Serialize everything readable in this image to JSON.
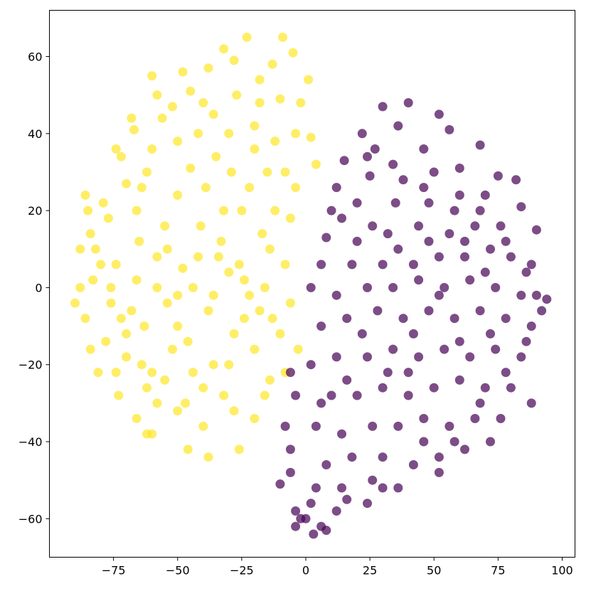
{
  "chart_data": {
    "type": "scatter",
    "title": "",
    "xlabel": "",
    "ylabel": "",
    "xlim": [
      -100,
      105
    ],
    "ylim": [
      -70,
      72
    ],
    "grid": false,
    "legend": "none",
    "xticks": [
      -75,
      -50,
      -25,
      0,
      25,
      50,
      75,
      100
    ],
    "yticks": [
      -60,
      -40,
      -20,
      0,
      20,
      40,
      60
    ],
    "xtick_labels": [
      "−75",
      "−50",
      "−25",
      "0",
      "25",
      "50",
      "75",
      "100"
    ],
    "ytick_labels": [
      "−60",
      "−40",
      "−20",
      "0",
      "20",
      "40",
      "60"
    ],
    "series": [
      {
        "color": "#fde725",
        "opacity": 0.7,
        "points": [
          [
            -23,
            65
          ],
          [
            -9,
            65
          ],
          [
            -60,
            55
          ],
          [
            -45,
            51
          ],
          [
            -13,
            58
          ],
          [
            -5,
            61
          ],
          [
            -38,
            57
          ],
          [
            -28,
            59
          ],
          [
            -52,
            47
          ],
          [
            -67,
            41
          ],
          [
            -72,
            34
          ],
          [
            -79,
            22
          ],
          [
            -85,
            20
          ],
          [
            -56,
            44
          ],
          [
            -42,
            40
          ],
          [
            -35,
            34
          ],
          [
            -20,
            42
          ],
          [
            -10,
            49
          ],
          [
            -2,
            48
          ],
          [
            2,
            39
          ],
          [
            4,
            32
          ],
          [
            -4,
            26
          ],
          [
            -15,
            30
          ],
          [
            -29,
            30
          ],
          [
            -39,
            26
          ],
          [
            -50,
            24
          ],
          [
            -62,
            30
          ],
          [
            -70,
            27
          ],
          [
            -77,
            18
          ],
          [
            -88,
            10
          ],
          [
            -83,
            2
          ],
          [
            -74,
            6
          ],
          [
            -65,
            12
          ],
          [
            -58,
            8
          ],
          [
            -48,
            5
          ],
          [
            -41,
            16
          ],
          [
            -33,
            12
          ],
          [
            -25,
            20
          ],
          [
            -17,
            14
          ],
          [
            -8,
            6
          ],
          [
            -6,
            -4
          ],
          [
            -13,
            -8
          ],
          [
            -22,
            -2
          ],
          [
            -30,
            4
          ],
          [
            -38,
            -6
          ],
          [
            -46,
            -14
          ],
          [
            -54,
            -4
          ],
          [
            -63,
            -10
          ],
          [
            -70,
            -18
          ],
          [
            -78,
            -14
          ],
          [
            -86,
            -8
          ],
          [
            -90,
            -4
          ],
          [
            -81,
            -22
          ],
          [
            -73,
            -28
          ],
          [
            -66,
            -34
          ],
          [
            -60,
            -38
          ],
          [
            -55,
            -24
          ],
          [
            -47,
            -30
          ],
          [
            -40,
            -36
          ],
          [
            -32,
            -28
          ],
          [
            -26,
            -42
          ],
          [
            -20,
            -34
          ],
          [
            -14,
            -24
          ],
          [
            -10,
            -12
          ],
          [
            -3,
            -16
          ],
          [
            -18,
            -6
          ],
          [
            -28,
            -12
          ],
          [
            -36,
            -20
          ],
          [
            -44,
            -22
          ],
          [
            -52,
            -16
          ],
          [
            -60,
            -22
          ],
          [
            -68,
            -6
          ],
          [
            -76,
            0
          ],
          [
            -84,
            14
          ],
          [
            -74,
            36
          ],
          [
            -66,
            20
          ],
          [
            -55,
            16
          ],
          [
            -45,
            31
          ],
          [
            -36,
            45
          ],
          [
            -27,
            50
          ],
          [
            -18,
            54
          ],
          [
            -12,
            38
          ],
          [
            -22,
            26
          ],
          [
            -32,
            20
          ],
          [
            -42,
            8
          ],
          [
            -50,
            -2
          ],
          [
            -58,
            0
          ],
          [
            -66,
            2
          ],
          [
            -76,
            -4
          ],
          [
            -70,
            -12
          ],
          [
            -62,
            -26
          ],
          [
            -50,
            -10
          ],
          [
            -36,
            -2
          ],
          [
            -26,
            6
          ],
          [
            -16,
            0
          ],
          [
            -24,
            -8
          ],
          [
            -30,
            -20
          ],
          [
            -40,
            -26
          ],
          [
            -46,
            -42
          ],
          [
            -58,
            -30
          ],
          [
            -64,
            -20
          ],
          [
            -72,
            -8
          ],
          [
            -80,
            6
          ],
          [
            -86,
            24
          ],
          [
            -60,
            36
          ],
          [
            -50,
            38
          ],
          [
            -40,
            48
          ],
          [
            -30,
            40
          ],
          [
            -20,
            36
          ],
          [
            -8,
            30
          ],
          [
            -6,
            18
          ],
          [
            -14,
            10
          ],
          [
            -24,
            2
          ],
          [
            -34,
            8
          ],
          [
            -44,
            0
          ],
          [
            -54,
            10
          ],
          [
            -64,
            26
          ],
          [
            -68,
            44
          ],
          [
            -58,
            50
          ],
          [
            -48,
            56
          ],
          [
            -32,
            62
          ],
          [
            -18,
            48
          ],
          [
            -4,
            40
          ],
          [
            1,
            54
          ],
          [
            -12,
            20
          ],
          [
            -20,
            -16
          ],
          [
            -8,
            -22
          ],
          [
            -16,
            -28
          ],
          [
            -28,
            -32
          ],
          [
            -38,
            -44
          ],
          [
            -50,
            -32
          ],
          [
            -62,
            -38
          ],
          [
            -74,
            -22
          ],
          [
            -84,
            -16
          ],
          [
            -88,
            0
          ],
          [
            -82,
            10
          ]
        ]
      },
      {
        "color": "#440154",
        "opacity": 0.7,
        "points": [
          [
            40,
            48
          ],
          [
            30,
            47
          ],
          [
            52,
            45
          ],
          [
            56,
            41
          ],
          [
            36,
            42
          ],
          [
            22,
            40
          ],
          [
            46,
            36
          ],
          [
            27,
            36
          ],
          [
            15,
            33
          ],
          [
            68,
            37
          ],
          [
            60,
            31
          ],
          [
            50,
            30
          ],
          [
            38,
            28
          ],
          [
            25,
            29
          ],
          [
            12,
            26
          ],
          [
            75,
            29
          ],
          [
            82,
            28
          ],
          [
            70,
            24
          ],
          [
            60,
            24
          ],
          [
            48,
            22
          ],
          [
            35,
            22
          ],
          [
            20,
            22
          ],
          [
            10,
            20
          ],
          [
            84,
            21
          ],
          [
            76,
            16
          ],
          [
            66,
            16
          ],
          [
            56,
            14
          ],
          [
            44,
            16
          ],
          [
            32,
            14
          ],
          [
            20,
            12
          ],
          [
            8,
            13
          ],
          [
            90,
            15
          ],
          [
            88,
            6
          ],
          [
            80,
            8
          ],
          [
            72,
            10
          ],
          [
            62,
            8
          ],
          [
            52,
            8
          ],
          [
            42,
            6
          ],
          [
            30,
            6
          ],
          [
            18,
            6
          ],
          [
            6,
            6
          ],
          [
            90,
            -2
          ],
          [
            94,
            -3
          ],
          [
            84,
            -2
          ],
          [
            74,
            0
          ],
          [
            64,
            2
          ],
          [
            54,
            0
          ],
          [
            44,
            2
          ],
          [
            34,
            0
          ],
          [
            24,
            0
          ],
          [
            12,
            -2
          ],
          [
            2,
            0
          ],
          [
            88,
            -10
          ],
          [
            78,
            -8
          ],
          [
            68,
            -6
          ],
          [
            58,
            -8
          ],
          [
            48,
            -6
          ],
          [
            38,
            -8
          ],
          [
            28,
            -6
          ],
          [
            16,
            -8
          ],
          [
            6,
            -10
          ],
          [
            84,
            -18
          ],
          [
            74,
            -16
          ],
          [
            64,
            -18
          ],
          [
            54,
            -16
          ],
          [
            44,
            -18
          ],
          [
            34,
            -16
          ],
          [
            24,
            -18
          ],
          [
            12,
            -18
          ],
          [
            2,
            -20
          ],
          [
            -6,
            -22
          ],
          [
            80,
            -26
          ],
          [
            70,
            -26
          ],
          [
            60,
            -24
          ],
          [
            50,
            -26
          ],
          [
            40,
            -28
          ],
          [
            30,
            -26
          ],
          [
            20,
            -28
          ],
          [
            10,
            -28
          ],
          [
            -4,
            -28
          ],
          [
            88,
            -30
          ],
          [
            76,
            -34
          ],
          [
            66,
            -34
          ],
          [
            56,
            -36
          ],
          [
            46,
            -34
          ],
          [
            36,
            -36
          ],
          [
            26,
            -36
          ],
          [
            14,
            -38
          ],
          [
            4,
            -36
          ],
          [
            -8,
            -36
          ],
          [
            72,
            -40
          ],
          [
            62,
            -42
          ],
          [
            52,
            -44
          ],
          [
            42,
            -46
          ],
          [
            30,
            -44
          ],
          [
            18,
            -44
          ],
          [
            8,
            -46
          ],
          [
            -6,
            -42
          ],
          [
            52,
            -48
          ],
          [
            36,
            -52
          ],
          [
            26,
            -50
          ],
          [
            14,
            -52
          ],
          [
            4,
            -52
          ],
          [
            -6,
            -48
          ],
          [
            -10,
            -51
          ],
          [
            24,
            -56
          ],
          [
            12,
            -58
          ],
          [
            2,
            -56
          ],
          [
            -4,
            -58
          ],
          [
            6,
            -62
          ],
          [
            -4,
            -62
          ],
          [
            0,
            -60
          ],
          [
            8,
            -63
          ],
          [
            3,
            -64
          ],
          [
            -2,
            -60
          ],
          [
            16,
            -55
          ],
          [
            30,
            -52
          ],
          [
            46,
            -40
          ],
          [
            58,
            -40
          ],
          [
            68,
            -30
          ],
          [
            78,
            -22
          ],
          [
            86,
            -14
          ],
          [
            92,
            -6
          ],
          [
            86,
            4
          ],
          [
            78,
            12
          ],
          [
            68,
            20
          ],
          [
            58,
            20
          ],
          [
            46,
            26
          ],
          [
            34,
            32
          ],
          [
            24,
            34
          ],
          [
            14,
            18
          ],
          [
            22,
            -12
          ],
          [
            32,
            -22
          ],
          [
            42,
            -12
          ],
          [
            52,
            -2
          ],
          [
            62,
            12
          ],
          [
            72,
            -12
          ],
          [
            36,
            10
          ],
          [
            48,
            12
          ],
          [
            26,
            16
          ],
          [
            16,
            -24
          ],
          [
            6,
            -30
          ],
          [
            40,
            -22
          ],
          [
            60,
            -14
          ],
          [
            70,
            4
          ]
        ]
      }
    ]
  }
}
